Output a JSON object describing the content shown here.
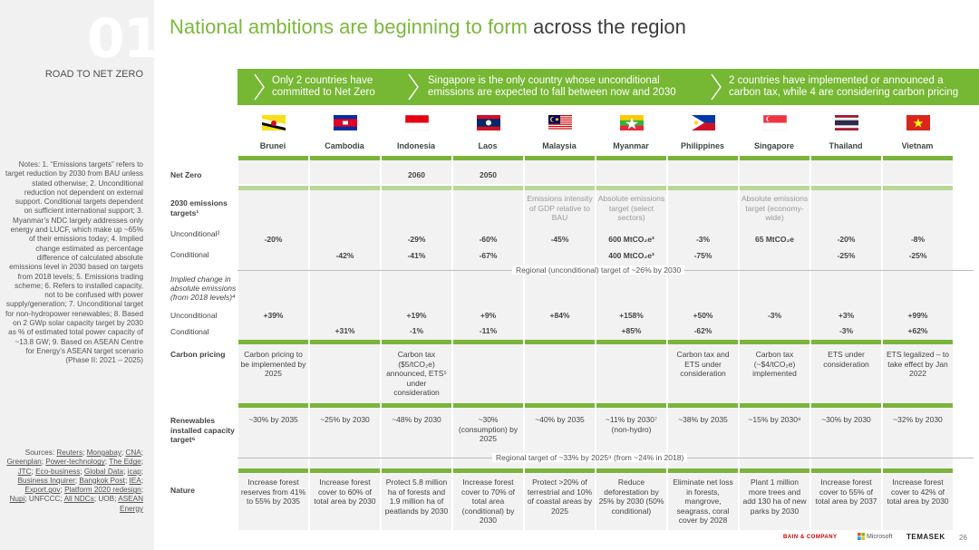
{
  "section": {
    "number": "01",
    "title": "ROAD TO NET ZERO"
  },
  "title": {
    "green": "National ambitions are beginning to form",
    "dark": " across the region"
  },
  "banner": [
    "Only 2 countries have committed to Net Zero",
    "Singapore is the only country whose unconditional emissions are expected to fall between now and 2030",
    "2 countries have implemented or announced a carbon tax, while 4 are considering carbon pricing"
  ],
  "countries": [
    "Brunei",
    "Cambodia",
    "Indonesia",
    "Laos",
    "Malaysia",
    "Myanmar",
    "Philippines",
    "Singapore",
    "Thailand",
    "Vietnam"
  ],
  "row_labels": {
    "net_zero": "Net Zero",
    "targets": "2030 emissions targets¹",
    "unconditional": "Unconditional²",
    "conditional": "Conditional",
    "implied": "Implied change in absolute emissions (from 2018 levels)⁴",
    "implied_unconditional": "Unconditional",
    "implied_conditional": "Conditional",
    "carbon": "Carbon pricing",
    "renew": "Renewables installed capacity target⁶",
    "nature": "Nature"
  },
  "rows": {
    "net_zero": [
      "",
      "",
      "2060",
      "2050",
      "",
      "",
      "",
      "",
      "",
      ""
    ],
    "target_type": [
      "",
      "",
      "",
      "",
      "Emissions intensity of GDP relative to BAU",
      "Absolute emissions target (select sectors)",
      "",
      "Absolute emissions target (economy-wide)",
      "",
      ""
    ],
    "unconditional": [
      "-20%",
      "",
      "-29%",
      "-60%",
      "-45%",
      "600 MtCO₂e³",
      "-3%",
      "65 MtCO₂e",
      "-20%",
      "-8%"
    ],
    "conditional": [
      "",
      "-42%",
      "-41%",
      "-67%",
      "",
      "400 MtCO₂e³",
      "-75%",
      "",
      "-25%",
      "-25%"
    ],
    "implied_unconditional": [
      "+39%",
      "",
      "+19%",
      "+9%",
      "+84%",
      "+158%",
      "+50%",
      "-3%",
      "+3%",
      "+99%"
    ],
    "implied_conditional": [
      "",
      "+31%",
      "-1%",
      "-11%",
      "",
      "+85%",
      "-62%",
      "",
      "-3%",
      "+62%"
    ],
    "carbon": [
      "Carbon pricing to be implemented by 2025",
      "",
      "Carbon tax ($5/tCO₂e) announced, ETS⁵ under consideration",
      "",
      "",
      "",
      "Carbon tax and ETS under consideration",
      "Carbon tax (~$4/tCO₂e) implemented",
      "ETS under consideration",
      "ETS legalized – to take effect by Jan 2022"
    ],
    "renew": [
      "~30% by 2035",
      "~25% by 2030",
      "~48% by 2030",
      "~30% (consumption) by 2025",
      "~40% by 2035",
      "~11% by 2030⁷ (non-hydro)",
      "~38% by 2035",
      "~15% by 2030⁸",
      "~30% by 2030",
      "~32% by 2030"
    ],
    "nature": [
      "Increase forest reserves from 41% to 55% by 2035",
      "Increase forest cover to 60% of total area by 2030",
      "Protect 5.8 million ha of forests and 1.9 million ha of peatlands by 2030",
      "Increase forest cover to 70% of total area (conditional) by 2030",
      "Protect >20% of terrestrial and 10% of coastal areas by 2025",
      "Reduce deforestation by 25% by 2030 (50% conditional)",
      "Eliminate net loss in forests, mangrove, seagrass, coral cover by 2028",
      "Plant 1 million more trees and add 130 ha of new parks by 2030",
      "Increase forest cover to 55% of total area by 2037",
      "Increase forest cover to 42% of total area by 2030"
    ]
  },
  "regional": {
    "emissions": "Regional (unconditional) target of ~26% by 2030",
    "renewables": "Regional target of ~33% by 2025⁹ (from ~24% in 2018)"
  },
  "notes": "Notes: 1. “Emissions targets” refers to target reduction by 2030 from BAU unless stated otherwise; 2. Unconditional reduction not dependent on external support. Conditional targets dependent on sufficient international support; 3. Myanmar’s NDC largely addresses only energy and LUCF, which make up ~65% of their emissions today; 4. Implied change estimated as percentage difference of calculated absolute emissions level in 2030 based on targets from 2018 levels; 5. Emissions trading scheme; 6. Refers to installed capacity, not to be confused with power supply/generation; 7. Unconditional target for non-hydropower renewables; 8. Based on 2 GWp solar capacity target by 2030 as % of estimated total power capacity of ~13.8 GW; 9. Based on ASEAN Centre for Energy’s ASEAN target scenario (Phase II: 2021 – 2025)",
  "sources": {
    "prefix": "Sources: ",
    "items": [
      "Reuters",
      "Mongabay",
      "CNA",
      "Greenplan",
      "Power-technology",
      "The Edge",
      "JTC",
      "Eco-business",
      "Global Data",
      "icap",
      "Business Inquirer",
      "Bangkok Post",
      "IEA",
      "Export.gov",
      "Platform 2020 redesign",
      "Nupi",
      "UNFCCC",
      "All NDCs",
      "UOB",
      "ASEAN Energy"
    ]
  },
  "footer": {
    "bain": "BAIN & COMPANY",
    "microsoft": "Microsoft",
    "temasek": "TEMASEK",
    "page": "26"
  },
  "colors": {
    "green": "#76b733",
    "title_green": "#7cb83c",
    "light_green": "#b9d796"
  }
}
